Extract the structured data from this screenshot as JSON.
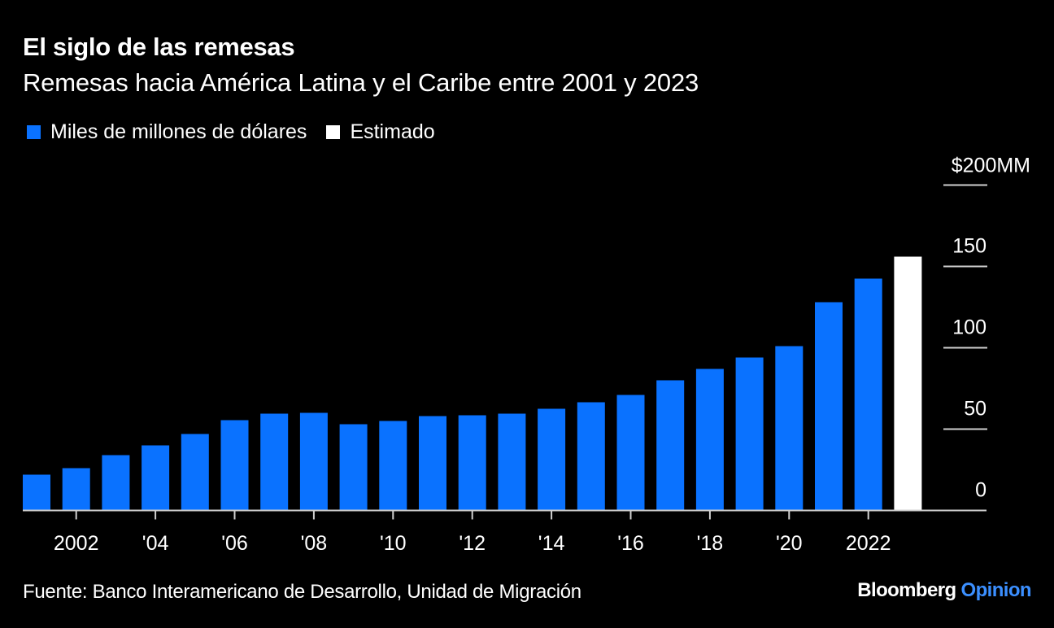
{
  "header": {
    "title": "El siglo de las remesas",
    "subtitle": "Remesas hacia América Latina y el Caribe entre 2001 y 2023"
  },
  "legend": [
    {
      "label": "Miles de millones de dólares",
      "color": "#0a72ff"
    },
    {
      "label": "Estimado",
      "color": "#ffffff"
    }
  ],
  "footer": {
    "source": "Fuente: Banco Interamericano de Desarrollo, Unidad de Migración",
    "brand_primary": "Bloomberg",
    "brand_secondary": "Opinion",
    "brand_secondary_color": "#3b8fff"
  },
  "chart_data": {
    "type": "bar",
    "title": "El siglo de las remesas",
    "subtitle": "Remesas hacia América Latina y el Caribe entre 2001 y 2023",
    "xlabel": "",
    "ylabel": "",
    "ylim": [
      0,
      200
    ],
    "yticks": [
      0,
      50,
      100,
      150,
      200
    ],
    "ytick_labels": [
      "0",
      "50",
      "100",
      "150",
      "$200MM"
    ],
    "y_axis_side": "right",
    "grid": false,
    "legend_position": "top-left",
    "categories": [
      "2001",
      "2002",
      "2003",
      "2004",
      "2005",
      "2006",
      "2007",
      "2008",
      "2009",
      "2010",
      "2011",
      "2012",
      "2013",
      "2014",
      "2015",
      "2016",
      "2017",
      "2018",
      "2019",
      "2020",
      "2021",
      "2022",
      "2023"
    ],
    "xtick_labels": [
      {
        "category": "2002",
        "label": "2002"
      },
      {
        "category": "2004",
        "label": "'04"
      },
      {
        "category": "2006",
        "label": "'06"
      },
      {
        "category": "2008",
        "label": "'08"
      },
      {
        "category": "2010",
        "label": "'10"
      },
      {
        "category": "2012",
        "label": "'12"
      },
      {
        "category": "2014",
        "label": "'14"
      },
      {
        "category": "2016",
        "label": "'16"
      },
      {
        "category": "2018",
        "label": "'18"
      },
      {
        "category": "2020",
        "label": "'20"
      },
      {
        "category": "2022",
        "label": "2022"
      }
    ],
    "series": [
      {
        "name": "Miles de millones de dólares",
        "color": "#0a72ff",
        "values": [
          22,
          26,
          34,
          40,
          47,
          55.5,
          59.5,
          60,
          53,
          55,
          58,
          58.5,
          59.5,
          62.5,
          66.5,
          71,
          80,
          87,
          94,
          101,
          128,
          142.5,
          null
        ]
      },
      {
        "name": "Estimado",
        "color": "#ffffff",
        "values": [
          null,
          null,
          null,
          null,
          null,
          null,
          null,
          null,
          null,
          null,
          null,
          null,
          null,
          null,
          null,
          null,
          null,
          null,
          null,
          null,
          null,
          null,
          156
        ]
      }
    ]
  }
}
